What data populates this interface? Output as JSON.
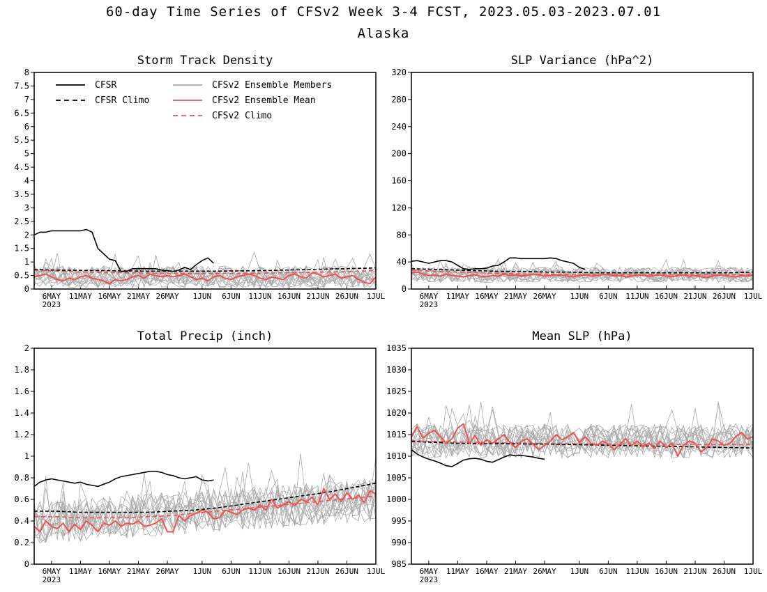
{
  "figure": {
    "title": "60-day Time Series of CFSv2 Week 3-4 FCST, 2023.05.03-2023.07.01",
    "subtitle": "Alaska"
  },
  "legend": {
    "cfsr": "CFSR",
    "cfsr_climo": "CFSR Climo",
    "members": "CFSv2 Ensemble Members",
    "ens_mean": "CFSv2 Ensemble Mean",
    "cfsv2_climo": "CFSv2 Climo"
  },
  "colors": {
    "cfsr": "#000000",
    "members": "#aaaaaa",
    "ens_mean": "#f05050",
    "cfsv2_climo": "#f05050"
  },
  "x_ticks": [
    {
      "day": 3,
      "label": "6MAY",
      "sub": "2023"
    },
    {
      "day": 8,
      "label": "11MAY"
    },
    {
      "day": 13,
      "label": "16MAY"
    },
    {
      "day": 18,
      "label": "21MAY"
    },
    {
      "day": 23,
      "label": "26MAY"
    },
    {
      "day": 29,
      "label": "1JUN"
    },
    {
      "day": 34,
      "label": "6JUN"
    },
    {
      "day": 39,
      "label": "11JUN"
    },
    {
      "day": 44,
      "label": "16JUN"
    },
    {
      "day": 49,
      "label": "21JUN"
    },
    {
      "day": 54,
      "label": "26JUN"
    },
    {
      "day": 59,
      "label": "1JUL"
    }
  ],
  "chart_data": [
    {
      "type": "line",
      "title": "Storm Track Density",
      "x_range": [
        "2023-05-03",
        "2023-07-01"
      ],
      "ylim": [
        0,
        8
      ],
      "yticks": [
        "0",
        "0.5",
        "1",
        "1.5",
        "2",
        "2.5",
        "3",
        "3.5",
        "4",
        "4.5",
        "5",
        "5.5",
        "6",
        "6.5",
        "7",
        "7.5",
        "8"
      ],
      "show_legend": true,
      "cfsr": [
        2.0,
        2.1,
        2.1,
        2.15,
        2.15,
        2.15,
        2.15,
        2.15,
        2.15,
        2.2,
        2.1,
        1.5,
        1.3,
        1.1,
        1.05,
        0.65,
        0.65,
        0.75,
        0.75,
        0.75,
        0.75,
        0.75,
        0.7,
        0.68,
        0.65,
        0.7,
        0.8,
        0.72,
        0.9,
        1.05,
        1.15,
        0.95
      ],
      "cfsr_climo": [
        0.72,
        0.7,
        0.69,
        0.68,
        0.67,
        0.66,
        0.66,
        0.66,
        0.66,
        0.67,
        0.68,
        0.7,
        0.72,
        0.74,
        0.76,
        0.78
      ],
      "cfsv2_climo": [
        0.7,
        0.66,
        0.63,
        0.61,
        0.6,
        0.59,
        0.58,
        0.58,
        0.58,
        0.58,
        0.59,
        0.6,
        0.61,
        0.63,
        0.65,
        0.68
      ],
      "ens_mean": [
        0.45,
        0.5,
        0.55,
        0.45,
        0.35,
        0.3,
        0.4,
        0.35,
        0.45,
        0.5,
        0.4,
        0.35,
        0.3,
        0.2,
        0.35,
        0.3,
        0.35,
        0.45,
        0.5,
        0.4,
        0.55,
        0.5,
        0.45,
        0.5,
        0.45,
        0.5,
        0.55,
        0.45,
        0.35,
        0.4,
        0.3,
        0.45,
        0.5,
        0.4,
        0.35,
        0.45,
        0.5,
        0.55,
        0.5,
        0.4,
        0.35,
        0.45,
        0.4,
        0.35,
        0.5,
        0.55,
        0.45,
        0.4,
        0.6,
        0.55,
        0.45,
        0.5,
        0.55,
        0.4,
        0.45,
        0.5,
        0.35,
        0.25,
        0.2,
        0.45
      ],
      "members_center": 0.45,
      "members_spread": 0.4
    },
    {
      "type": "line",
      "title": "SLP Variance (hPa^2)",
      "x_range": [
        "2023-05-03",
        "2023-07-01"
      ],
      "ylim": [
        0,
        320
      ],
      "yticks": [
        "0",
        "40",
        "80",
        "120",
        "160",
        "200",
        "240",
        "280",
        "320"
      ],
      "cfsr": [
        41,
        42,
        40,
        38,
        40,
        42,
        42,
        40,
        35,
        30,
        29,
        30,
        30,
        31,
        34,
        35,
        40,
        46,
        46,
        45,
        45,
        45,
        45,
        45,
        46,
        45,
        42,
        40,
        38,
        32,
        29
      ],
      "cfsr_climo": [
        30,
        29,
        28,
        27,
        26,
        26,
        25,
        25,
        24,
        24,
        24,
        24,
        24,
        24,
        24,
        25
      ],
      "cfsv2_climo": [
        28,
        26,
        25,
        24,
        23,
        22,
        22,
        21,
        21,
        21,
        21,
        21,
        21,
        21,
        21,
        22
      ],
      "ens_mean": [
        24,
        25,
        22,
        20,
        21,
        19,
        22,
        20,
        19,
        18,
        20,
        21,
        19,
        18,
        20,
        19,
        22,
        20,
        21,
        19,
        20,
        22,
        21,
        19,
        20,
        21,
        20,
        19,
        18,
        20,
        21,
        19,
        20,
        21,
        22,
        19,
        20,
        18,
        19,
        21,
        20,
        19,
        20,
        21,
        19,
        18,
        20,
        21,
        19,
        20,
        18,
        17,
        19,
        21,
        20,
        19,
        18,
        20,
        19,
        21
      ],
      "members_center": 21,
      "members_spread": 11
    },
    {
      "type": "line",
      "title": "Total Precip (inch)",
      "x_range": [
        "2023-05-03",
        "2023-07-01"
      ],
      "ylim": [
        0,
        2
      ],
      "yticks": [
        "0",
        "0.2",
        "0.4",
        "0.6",
        "0.8",
        "1",
        "1.2",
        "1.4",
        "1.6",
        "1.8",
        "2"
      ],
      "cfsr": [
        0.72,
        0.76,
        0.78,
        0.79,
        0.78,
        0.77,
        0.76,
        0.75,
        0.76,
        0.74,
        0.73,
        0.72,
        0.74,
        0.76,
        0.79,
        0.81,
        0.82,
        0.83,
        0.84,
        0.85,
        0.86,
        0.86,
        0.85,
        0.83,
        0.82,
        0.8,
        0.79,
        0.8,
        0.81,
        0.78,
        0.77,
        0.78
      ],
      "cfsr_climo": [
        0.49,
        0.49,
        0.48,
        0.48,
        0.48,
        0.48,
        0.49,
        0.5,
        0.52,
        0.55,
        0.58,
        0.61,
        0.64,
        0.67,
        0.71,
        0.75
      ],
      "cfsv2_climo": [
        0.44,
        0.44,
        0.43,
        0.43,
        0.43,
        0.44,
        0.45,
        0.47,
        0.49,
        0.51,
        0.53,
        0.55,
        0.57,
        0.59,
        0.61,
        0.63
      ],
      "ens_mean": [
        0.35,
        0.3,
        0.4,
        0.35,
        0.33,
        0.38,
        0.3,
        0.37,
        0.32,
        0.4,
        0.36,
        0.3,
        0.38,
        0.36,
        0.4,
        0.35,
        0.38,
        0.37,
        0.4,
        0.35,
        0.36,
        0.38,
        0.42,
        0.3,
        0.3,
        0.45,
        0.4,
        0.45,
        0.47,
        0.5,
        0.48,
        0.42,
        0.43,
        0.5,
        0.48,
        0.46,
        0.5,
        0.52,
        0.5,
        0.55,
        0.5,
        0.6,
        0.52,
        0.55,
        0.58,
        0.54,
        0.6,
        0.58,
        0.62,
        0.55,
        0.7,
        0.6,
        0.65,
        0.58,
        0.66,
        0.6,
        0.64,
        0.57,
        0.68,
        0.65
      ],
      "members_center_start": 0.38,
      "members_center_end": 0.6,
      "members_spread": 0.2
    },
    {
      "type": "line",
      "title": "Mean SLP (hPa)",
      "x_range": [
        "2023-05-03",
        "2023-07-01"
      ],
      "ylim": [
        985,
        1035
      ],
      "yticks": [
        "985",
        "990",
        "995",
        "1000",
        "1005",
        "1010",
        "1015",
        "1020",
        "1025",
        "1030",
        "1035"
      ],
      "cfsr": [
        1011.5,
        1010.5,
        1009.8,
        1009.3,
        1008.9,
        1008.4,
        1007.8,
        1007.6,
        1008.3,
        1009.1,
        1009.4,
        1009.5,
        1009.3,
        1008.8,
        1008.6,
        1009.2,
        1009.8,
        1010.3,
        1010.1,
        1010.2,
        1010.0,
        1009.8,
        1009.5,
        1009.3
      ],
      "cfsr_climo": [
        1013.4,
        1013.2,
        1013.0,
        1012.9,
        1012.9,
        1012.8,
        1012.8,
        1012.7,
        1012.6,
        1012.5,
        1012.4,
        1012.3,
        1012.2,
        1012.1,
        1012.0,
        1011.9
      ],
      "cfsv2_climo": [
        1013.6,
        1013.4,
        1013.3,
        1013.2,
        1013.1,
        1013.0,
        1012.9,
        1012.9,
        1012.8,
        1012.8,
        1012.8,
        1012.8,
        1012.7,
        1012.7,
        1012.7,
        1012.7
      ],
      "ens_mean": [
        1014.5,
        1016.8,
        1014.2,
        1015.3,
        1016.0,
        1014.5,
        1013.0,
        1014.0,
        1016.5,
        1017.5,
        1013.0,
        1014.8,
        1012.5,
        1013.8,
        1013.0,
        1014.0,
        1015.0,
        1013.2,
        1012.0,
        1013.5,
        1014.0,
        1012.8,
        1011.5,
        1012.5,
        1013.5,
        1015.0,
        1013.8,
        1014.5,
        1015.5,
        1013.2,
        1014.5,
        1013.0,
        1012.5,
        1013.5,
        1012.8,
        1011.5,
        1012.8,
        1014.0,
        1012.5,
        1013.5,
        1012.2,
        1013.0,
        1011.8,
        1013.5,
        1012.0,
        1013.0,
        1010.0,
        1012.5,
        1013.5,
        1013.0,
        1011.0,
        1012.0,
        1014.0,
        1013.5,
        1012.5,
        1013.0,
        1014.5,
        1015.5,
        1014.0,
        1014.5
      ],
      "members_center": 1013.5,
      "members_spread": 4
    }
  ]
}
